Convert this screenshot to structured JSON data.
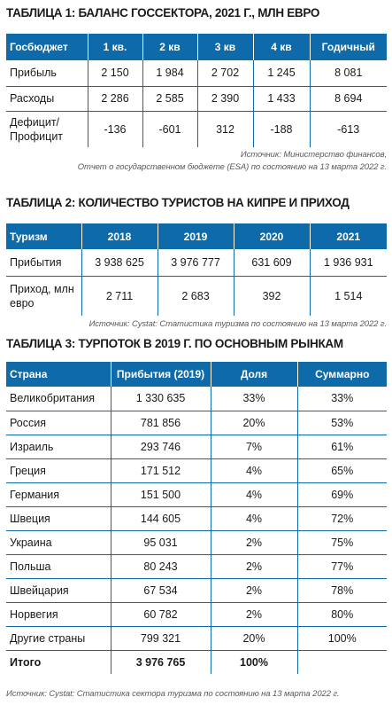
{
  "table1": {
    "title": "ТАБЛИЦА 1: БАЛАНС ГОССЕКТОРА, 2021 Г., МЛН ЕВРО",
    "headers": [
      "Госбюджет",
      "1 кв.",
      "2 кв",
      "3 кв",
      "4 кв",
      "Годичный"
    ],
    "rows": [
      [
        "Прибыль",
        "2 150",
        "1 984",
        "2 702",
        "1 245",
        "8 081"
      ],
      [
        "Расходы",
        "2 286",
        "2 585",
        "2 390",
        "1 433",
        "8 694"
      ],
      [
        "Дефицит/ Профицит",
        "-136",
        "-601",
        "312",
        "-188",
        "-613"
      ]
    ],
    "source_line1": "Источник: Министерство финансов,",
    "source_line2": "Отчет о государственном бюджете (ESA) по состоянию на 13 марта 2022 г."
  },
  "table2": {
    "title": "ТАБЛИЦА 2: КОЛИЧЕСТВО ТУРИСТОВ НА КИПРЕ И ПРИХОД",
    "headers": [
      "Туризм",
      "2018",
      "2019",
      "2020",
      "2021"
    ],
    "rows": [
      [
        "Прибытия",
        "3 938 625",
        "3 976 777",
        "631 609",
        "1 936 931"
      ],
      [
        "Приход, млн евро",
        "2 711",
        "2 683",
        "392",
        "1 514"
      ]
    ],
    "source": "Источник: Cystat: Статистика туризма по состоянию на 13 марта 2022 г."
  },
  "table3": {
    "title": "ТАБЛИЦА 3: ТУРПОТОК В 2019 Г. ПО ОСНОВНЫМ РЫНКАМ",
    "headers": [
      "Страна",
      "Прибытия (2019)",
      "Доля",
      "Суммарно"
    ],
    "rows": [
      [
        "Великобритания",
        "1 330 635",
        "33%",
        "33%"
      ],
      [
        "Россия",
        "781 856",
        "20%",
        "53%"
      ],
      [
        "Израиль",
        "293 746",
        "7%",
        "61%"
      ],
      [
        "Греция",
        "171 512",
        "4%",
        "65%"
      ],
      [
        "Германия",
        "151 500",
        "4%",
        "69%"
      ],
      [
        "Швеция",
        "144 605",
        "4%",
        "72%"
      ],
      [
        "Украина",
        "95 031",
        "2%",
        "75%"
      ],
      [
        "Польша",
        "80 243",
        "2%",
        "77%"
      ],
      [
        "Швейцария",
        "67 534",
        "2%",
        "78%"
      ],
      [
        "Норвегия",
        "60 782",
        "2%",
        "80%"
      ],
      [
        "Другие страны",
        "799 321",
        "20%",
        "100%"
      ]
    ],
    "total": [
      "Итого",
      "3 976 765",
      "100%",
      ""
    ],
    "source": "Источник: Cystat: Статистика сектора туризма по состоянию на 13 марта 2022 г."
  },
  "colors": {
    "header_bg": "#0e6aa8",
    "header_text": "#ffffff",
    "grid": "#0e6aa8"
  }
}
